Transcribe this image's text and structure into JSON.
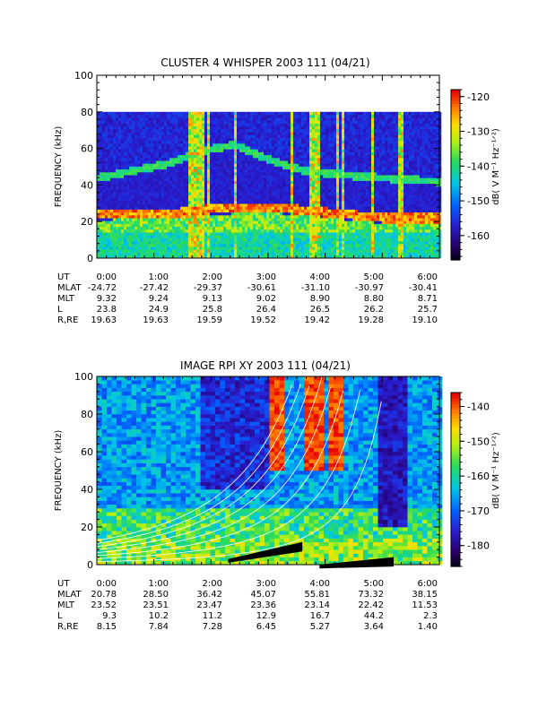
{
  "chart_data": [
    {
      "type": "heatmap",
      "title": "CLUSTER 4 WHISPER 2003 111 (04/21)",
      "ylabel": "FREQUENCY (kHz)",
      "y_ticks": [
        "0",
        "20",
        "40",
        "60",
        "80",
        "100"
      ],
      "ylim": [
        0,
        100
      ],
      "data_ylim": [
        0,
        80
      ],
      "x_ticks": [
        "0:00",
        "1:00",
        "2:00",
        "3:00",
        "4:00",
        "5:00",
        "6:00"
      ],
      "xlim_hours": [
        0,
        6
      ],
      "colorbar": {
        "label": "dB( V M⁻¹ Hz⁻¹ᐟ²)",
        "ticks": [
          "-120",
          "-130",
          "-140",
          "-150",
          "-160"
        ],
        "range": [
          -167,
          -118
        ]
      },
      "ephemeris": [
        {
          "name": "UT",
          "values": [
            "0:00",
            "1:00",
            "2:00",
            "3:00",
            "4:00",
            "5:00",
            "6:00"
          ]
        },
        {
          "name": "MLAT",
          "values": [
            "-24.72",
            "-27.42",
            "-29.37",
            "-30.61",
            "-31.10",
            "-30.97",
            "-30.41"
          ]
        },
        {
          "name": "MLT",
          "values": [
            "9.32",
            "9.24",
            "9.13",
            "9.02",
            "8.90",
            "8.80",
            "8.71"
          ]
        },
        {
          "name": "L",
          "values": [
            "23.8",
            "24.9",
            "25.8",
            "26.4",
            "26.5",
            "26.2",
            "25.7"
          ]
        },
        {
          "name": "R,RE",
          "values": [
            "19.63",
            "19.63",
            "19.59",
            "19.52",
            "19.42",
            "19.28",
            "19.10"
          ]
        }
      ],
      "features": {
        "plasma_line_kHz": [
          [
            0,
            44
          ],
          [
            1.25,
            52
          ],
          [
            1.7,
            57
          ],
          [
            2.0,
            60
          ],
          [
            2.4,
            62
          ],
          [
            3.0,
            54
          ],
          [
            3.6,
            48
          ],
          [
            4.2,
            46
          ],
          [
            5.0,
            44
          ],
          [
            6.0,
            42
          ]
        ],
        "lower_band_kHz": [
          [
            0,
            24
          ],
          [
            1.5,
            25
          ],
          [
            2.0,
            27
          ],
          [
            3.0,
            28
          ],
          [
            4.0,
            25
          ],
          [
            5.0,
            22
          ],
          [
            6.0,
            22
          ]
        ],
        "broadband_spikes_ut_hours": [
          1.62,
          1.72,
          1.82,
          1.92,
          2.4,
          3.4,
          3.75,
          3.85,
          4.2,
          4.3,
          4.8,
          5.3
        ]
      }
    },
    {
      "type": "heatmap",
      "title": "IMAGE RPI XY 2003 111 (04/21)",
      "ylabel": "FREQUENCY (kHz)",
      "y_ticks": [
        "0",
        "20",
        "40",
        "60",
        "80",
        "100"
      ],
      "ylim": [
        0,
        100
      ],
      "x_ticks": [
        "0:00",
        "1:00",
        "2:00",
        "3:00",
        "4:00",
        "5:00",
        "6:00"
      ],
      "xlim_hours": [
        0,
        6
      ],
      "colorbar": {
        "label": "dB( V M⁻¹ Hz⁻¹ᐟ²)",
        "ticks": [
          "-140",
          "-150",
          "-160",
          "-170",
          "-180"
        ],
        "range": [
          -186,
          -136
        ]
      },
      "ephemeris": [
        {
          "name": "UT",
          "values": [
            "0:00",
            "1:00",
            "2:00",
            "3:00",
            "4:00",
            "5:00",
            "6:00"
          ]
        },
        {
          "name": "MLAT",
          "values": [
            "20.78",
            "28.50",
            "36.42",
            "45.07",
            "55.81",
            "73.32",
            "38.15"
          ]
        },
        {
          "name": "MLT",
          "values": [
            "23.52",
            "23.51",
            "23.47",
            "23.36",
            "23.14",
            "22.42",
            "11.53"
          ]
        },
        {
          "name": "L",
          "values": [
            "9.3",
            "10.2",
            "11.2",
            "12.9",
            "16.7",
            "44.2",
            "2.3"
          ]
        },
        {
          "name": "R,RE",
          "values": [
            "8.15",
            "7.84",
            "7.28",
            "6.45",
            "5.27",
            "3.64",
            "1.40"
          ]
        }
      ],
      "features": {
        "harmonic_curve_multipliers": [
          1,
          2,
          3,
          4,
          5,
          6,
          7,
          8
        ],
        "hot_columns_ut_hours": [
          [
            3.0,
            3.2
          ],
          [
            3.55,
            3.9
          ],
          [
            4.05,
            4.3
          ]
        ],
        "black_band_ut_hours": [
          [
            2.3,
            3.6
          ],
          [
            3.9,
            5.2
          ]
        ]
      }
    }
  ]
}
